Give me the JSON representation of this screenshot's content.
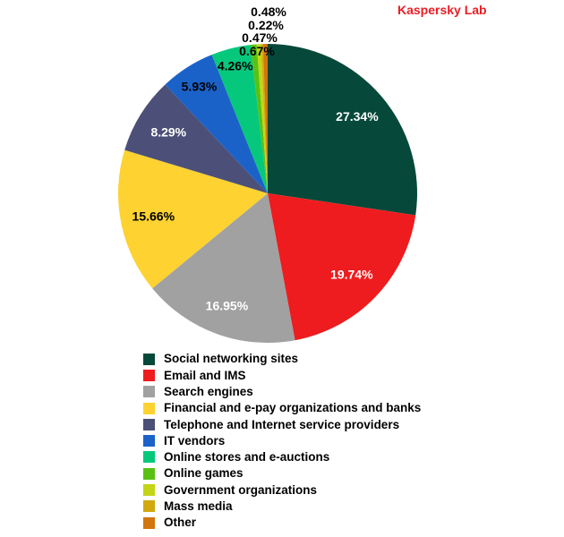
{
  "header": {
    "brand": "Kaspersky Lab",
    "brand_color": "#ED1C24"
  },
  "chart_data": {
    "type": "pie",
    "title": "",
    "legend_position": "bottom",
    "start_angle_deg": 0,
    "direction": "clockwise",
    "background": "#FFFFFF",
    "slices": [
      {
        "label": "Social networking sites",
        "value": 27.34,
        "display": "27.34%",
        "color": "#06493A",
        "label_color": "#FFFFFF",
        "label_r": 0.79
      },
      {
        "label": "Email and IMS",
        "value": 19.74,
        "display": "19.74%",
        "color": "#EE1C1E",
        "label_color": "#FFFFFF",
        "label_r": 0.78
      },
      {
        "label": "Search engines",
        "value": 16.95,
        "display": "16.95%",
        "color": "#A1A1A1",
        "label_color": "#FFFFFF",
        "label_r": 0.8
      },
      {
        "label": "Financial and e-pay organizations and banks",
        "value": 15.66,
        "display": "15.66%",
        "color": "#FDD231",
        "label_color": "#000000",
        "label_r": 0.78
      },
      {
        "label": "Telephone and Internet service providers",
        "value": 8.29,
        "display": "8.29%",
        "color": "#4C5078",
        "label_color": "#FFFFFF",
        "label_r": 0.78
      },
      {
        "label": "IT vendors",
        "value": 5.93,
        "display": "5.93%",
        "color": "#1B62C8",
        "label_color": "#000000",
        "label_r": 0.85
      },
      {
        "label": "Online stores and e-auctions",
        "value": 4.26,
        "display": "4.26%",
        "color": "#06C87D",
        "label_color": "#000000",
        "label_r": 0.88
      },
      {
        "label": "Online games",
        "value": 0.67,
        "display": "0.67%",
        "color": "#59C113",
        "label_color": "#000000",
        "stacked": true
      },
      {
        "label": "Government organizations",
        "value": 0.47,
        "display": "0.47%",
        "color": "#C3D516",
        "label_color": "#000000",
        "stacked": true
      },
      {
        "label": "Mass media",
        "value": 0.22,
        "display": "0.22%",
        "color": "#D2A80D",
        "label_color": "#000000",
        "stacked": true
      },
      {
        "label": "Other",
        "value": 0.48,
        "display": "0.48%",
        "color": "#D2750F",
        "label_color": "#000000",
        "stacked": true
      }
    ]
  }
}
